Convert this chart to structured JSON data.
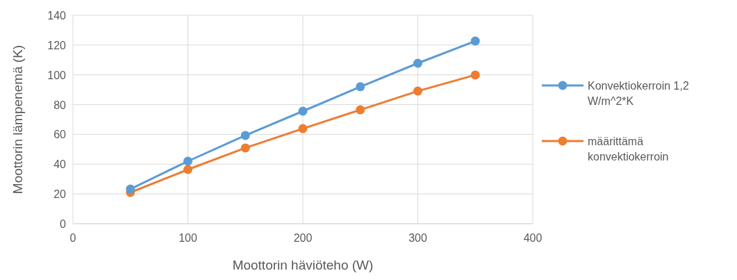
{
  "chart_data": {
    "type": "line",
    "xlabel": "Moottorin häviöteho (W)",
    "ylabel": "Moottorin lämpenemä (K)",
    "x": [
      50,
      100,
      150,
      200,
      250,
      300,
      350
    ],
    "series": [
      {
        "name": "Konvektiokerroin 1,2 W/m^2*K",
        "color": "#5b9bd5",
        "values": [
          23.3,
          42,
          59.3,
          75.6,
          92,
          107.8,
          122.7
        ]
      },
      {
        "name": "määrittämä konvektiokerroin",
        "color": "#ed7d31",
        "values": [
          21,
          36.4,
          50.9,
          63.9,
          76.5,
          89.1,
          99.9
        ]
      }
    ],
    "xlim": [
      0,
      400
    ],
    "xticks": [
      0,
      100,
      200,
      300,
      400
    ],
    "ylim": [
      0,
      140
    ],
    "yticks": [
      0,
      20,
      40,
      60,
      80,
      100,
      120,
      140
    ],
    "grid": true,
    "legend": "right",
    "marker": "circle",
    "line_style": "solid"
  }
}
